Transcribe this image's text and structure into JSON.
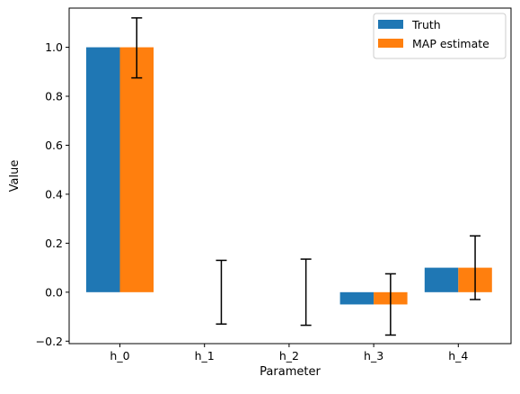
{
  "chart_data": {
    "type": "bar",
    "title": "",
    "xlabel": "Parameter",
    "ylabel": "Value",
    "categories": [
      "h_0",
      "h_1",
      "h_2",
      "h_3",
      "h_4"
    ],
    "ylim": [
      -0.21,
      1.16
    ],
    "yticks": [
      -0.2,
      0.0,
      0.2,
      0.4,
      0.6,
      0.8,
      1.0
    ],
    "ytick_labels": [
      "−0.2",
      "0.0",
      "0.2",
      "0.4",
      "0.6",
      "0.8",
      "1.0"
    ],
    "grid": false,
    "legend_position": "top-right",
    "series": [
      {
        "name": "Truth",
        "color": "#1f77b4",
        "values": [
          1.0,
          0.0,
          0.0,
          -0.05,
          0.1
        ]
      },
      {
        "name": "MAP estimate",
        "color": "#ff7f0e",
        "values": [
          1.0,
          0.0,
          0.0,
          -0.05,
          0.1
        ],
        "error_bars": [
          {
            "low": 0.875,
            "high": 1.12
          },
          {
            "low": -0.13,
            "high": 0.13
          },
          {
            "low": -0.135,
            "high": 0.135
          },
          {
            "low": -0.175,
            "high": 0.075
          },
          {
            "low": -0.03,
            "high": 0.23
          }
        ]
      }
    ]
  }
}
